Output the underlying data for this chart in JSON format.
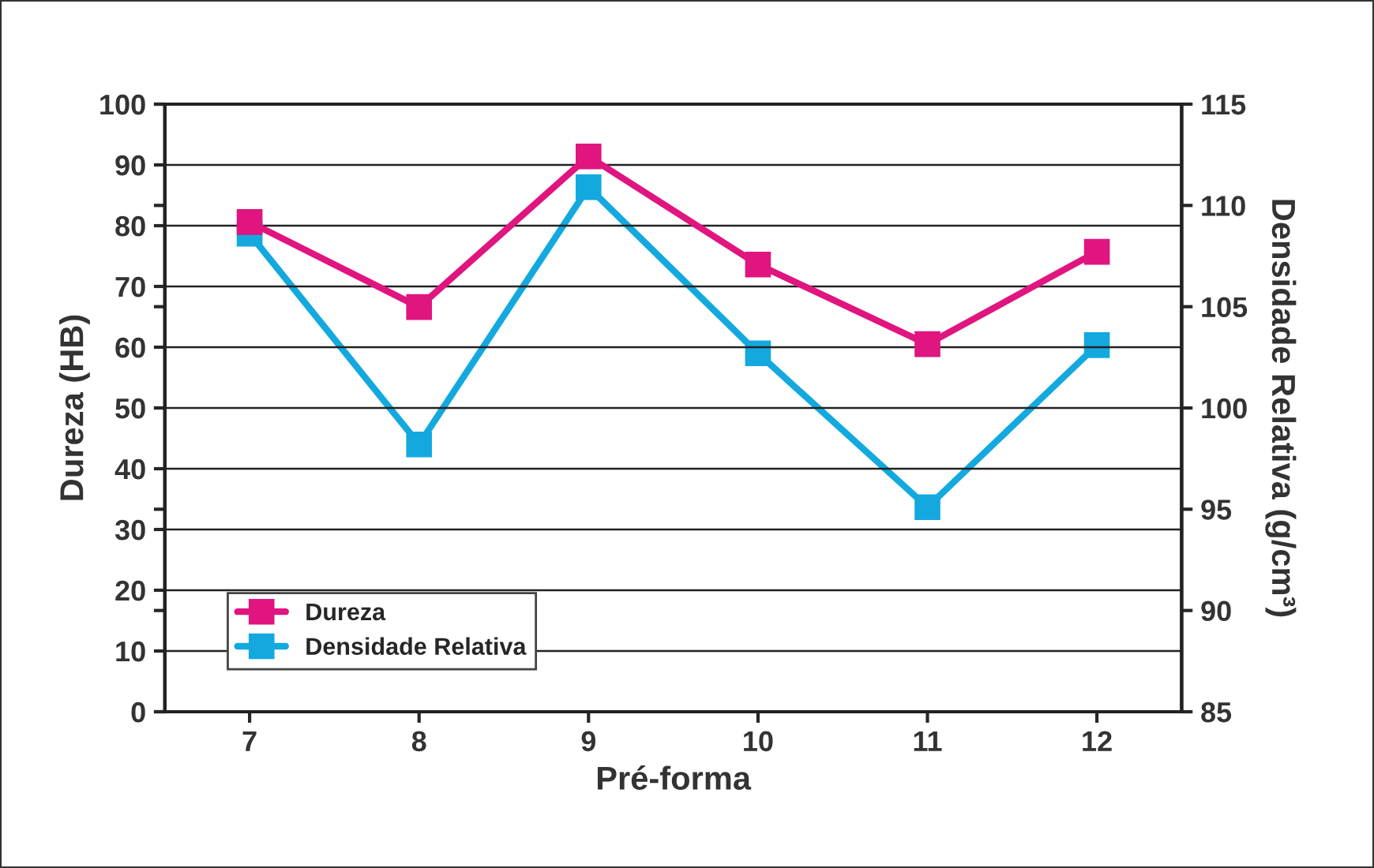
{
  "chart_data": {
    "type": "line",
    "xlabel": "Pré-forma",
    "ylabel": "Dureza (HB)",
    "y2label": "Densidade Relativa (g/cm³)",
    "categories": [
      "7",
      "8",
      "9",
      "10",
      "11",
      "12"
    ],
    "series": [
      {
        "name": "Dureza",
        "color": "#e0157f",
        "values": [
          80.6,
          66.6,
          91.4,
          73.6,
          60.5,
          75.7
        ]
      },
      {
        "name": "Densidade Relativa",
        "color": "#13a9df",
        "axis": "y2",
        "values": [
          108.6,
          98.2,
          110.9,
          102.7,
          95.1,
          103.1
        ]
      }
    ],
    "ylim": [
      0,
      100
    ],
    "yticks": [
      0,
      10,
      20,
      30,
      40,
      50,
      60,
      70,
      80,
      90,
      100
    ],
    "y2lim": [
      85,
      115
    ],
    "y2ticks": [
      85,
      90,
      95,
      100,
      105,
      110,
      115
    ],
    "grid": "y",
    "legend": "bottom left",
    "marker": "square",
    "line_style": "solid"
  }
}
